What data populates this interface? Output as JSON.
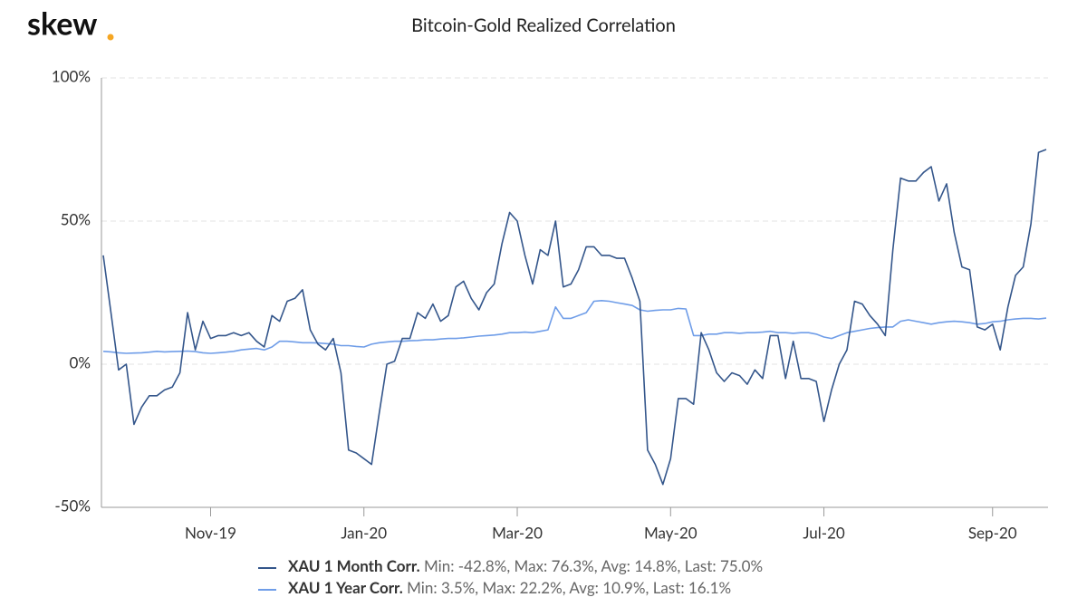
{
  "logo": "skew",
  "chart_data": {
    "type": "line",
    "title": "Bitcoin-Gold Realized Correlation",
    "categories": [
      null,
      null,
      null,
      null,
      null,
      null,
      null,
      null,
      null,
      null,
      null,
      null,
      null,
      null,
      "Nov-19",
      null,
      null,
      null,
      null,
      null,
      null,
      null,
      null,
      null,
      null,
      null,
      null,
      null,
      null,
      null,
      null,
      null,
      null,
      null,
      "Jan-20",
      null,
      null,
      null,
      null,
      null,
      null,
      null,
      null,
      null,
      null,
      null,
      null,
      null,
      null,
      null,
      null,
      null,
      null,
      null,
      "Mar-20",
      null,
      null,
      null,
      null,
      null,
      null,
      null,
      null,
      null,
      null,
      null,
      null,
      null,
      null,
      null,
      null,
      null,
      null,
      null,
      "May-20",
      null,
      null,
      null,
      null,
      null,
      null,
      null,
      null,
      null,
      null,
      null,
      null,
      null,
      null,
      null,
      null,
      null,
      null,
      null,
      "Jul-20",
      null,
      null,
      null,
      null,
      null,
      null,
      null,
      null,
      null,
      null,
      null,
      null,
      null,
      null,
      null,
      null,
      null,
      null,
      null,
      null,
      null,
      "Sep-20",
      null,
      null,
      null,
      null,
      null,
      null,
      null
    ],
    "series": [
      {
        "name": "XAU 1 Month Corr.",
        "stats": "Min: -42.8%, Max: 76.3%, Avg: 14.8%, Last: 75.0%",
        "color": "#34568b",
        "values": [
          38,
          18,
          -2,
          0,
          -21,
          -15,
          -11,
          -11,
          -9,
          -8,
          -3,
          18,
          5,
          15,
          9,
          10,
          10,
          11,
          10,
          11,
          8,
          6,
          17,
          15,
          22,
          23,
          26,
          12,
          7,
          5,
          9,
          -3,
          -30,
          -31,
          -33,
          -35,
          -17,
          0,
          1,
          9,
          9,
          18,
          16,
          21,
          15,
          17,
          27,
          29,
          23,
          19,
          25,
          28,
          42,
          53,
          50,
          38,
          28,
          40,
          38,
          50,
          27,
          28,
          33,
          41,
          41,
          38,
          38,
          37,
          37,
          30,
          22,
          -30,
          -35,
          -42,
          -33,
          -12,
          -12,
          -14,
          11,
          5,
          -3,
          -6,
          -3,
          -4,
          -7,
          -2,
          -5,
          10,
          10,
          -5,
          8,
          -5,
          -5,
          -6,
          -20,
          -9,
          0,
          5,
          22,
          21,
          17,
          14,
          10,
          40,
          65,
          64,
          64,
          67,
          69,
          57,
          63,
          46,
          34,
          33,
          13,
          12,
          14,
          5,
          20,
          31,
          34,
          49,
          74,
          75
        ]
      },
      {
        "name": "XAU 1 Year Corr.",
        "stats": "Min: 3.5%, Max: 22.2%, Avg: 10.9%, Last: 16.1%",
        "color": "#6f9de8",
        "values": [
          4.5,
          4.3,
          4,
          3.8,
          3.9,
          4,
          4.2,
          4.5,
          4.3,
          4.4,
          4.5,
          4.6,
          4.4,
          4,
          3.8,
          4,
          4.2,
          4.5,
          5,
          5.3,
          5.5,
          5,
          6,
          8,
          8,
          7.8,
          7.5,
          7.5,
          7.4,
          7.2,
          7,
          6.5,
          6.5,
          6.2,
          6,
          7,
          7.5,
          7.8,
          8,
          8,
          8.2,
          8.3,
          8.5,
          8.5,
          8.8,
          9,
          9,
          9.2,
          9.5,
          9.8,
          10,
          10.2,
          10.5,
          11,
          11,
          11.2,
          11,
          11.5,
          12,
          20,
          16,
          16,
          17,
          18,
          22,
          22.2,
          22,
          21.5,
          21,
          20.5,
          19,
          18.5,
          18.8,
          19,
          19,
          19.5,
          19.3,
          10,
          10,
          10.5,
          10.5,
          11,
          11,
          10.8,
          11,
          11,
          11.2,
          11.5,
          11,
          11,
          10.8,
          11,
          11,
          10.5,
          9.5,
          9,
          10,
          11,
          11.5,
          12,
          12.5,
          12.8,
          13,
          13,
          15,
          15.5,
          15,
          14.5,
          14,
          14.5,
          14.8,
          15,
          14.8,
          14.5,
          14,
          14.2,
          14.8,
          15,
          15.5,
          15.8,
          16,
          16,
          15.8,
          16.1
        ]
      }
    ],
    "ylim": [
      -50,
      100
    ],
    "yticks": [
      {
        "value": -50,
        "label": "-50%"
      },
      {
        "value": 0,
        "label": "0%"
      },
      {
        "value": 50,
        "label": "50%"
      },
      {
        "value": 100,
        "label": "100%"
      }
    ],
    "grid": true
  }
}
